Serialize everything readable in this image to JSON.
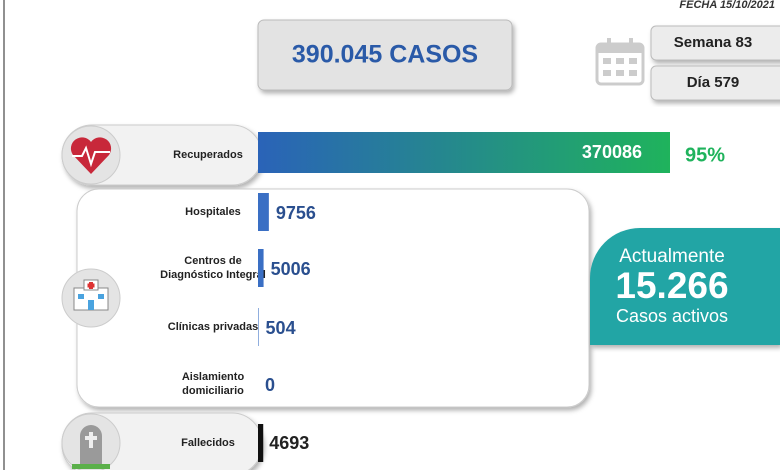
{
  "header": {
    "date": "FECHA 15/10/2021",
    "total": "390.045 CASOS",
    "week": "Semana 83",
    "day": "Día 579"
  },
  "recovered": {
    "label": "Recuperados",
    "value": 370086,
    "percent": 95,
    "percent_label": "95%",
    "color": "#1fb35c"
  },
  "care": [
    {
      "label": [
        "Hospitales"
      ],
      "value": 9756,
      "color": "#3a6fc4"
    },
    {
      "label": [
        "Centros de",
        "Diagnóstico Integral"
      ],
      "value": 5006,
      "color": "#3a6fc4"
    },
    {
      "label": [
        "Clínicas privadas"
      ],
      "value": 504,
      "color": "#3a6fc4"
    },
    {
      "label": [
        "Aislamiento",
        "domiciliario"
      ],
      "value": 0,
      "color": "#3a6fc4"
    }
  ],
  "deceased": {
    "label": "Fallecidos",
    "value": 4693,
    "color": "#111111"
  },
  "active": {
    "line1": "Actualmente",
    "count": "15.266",
    "line2": "Casos activos"
  }
}
